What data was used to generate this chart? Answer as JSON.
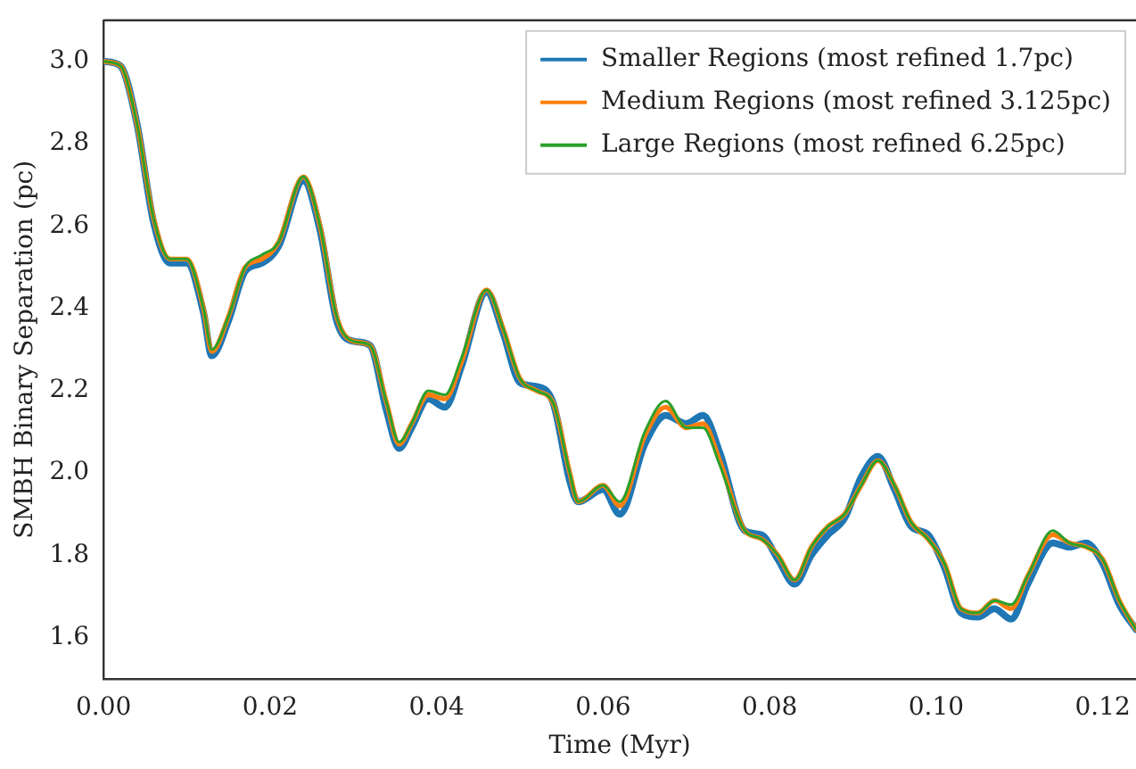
{
  "chart_data": {
    "type": "line",
    "xlabel": "Time (Myr)",
    "ylabel": "SMBH Binary Separation (pc)",
    "xlim": [
      0,
      0.124
    ],
    "ylim": [
      1.5,
      3.1
    ],
    "xticks": [
      {
        "value": 0,
        "label": "0.00"
      },
      {
        "value": 0.02,
        "label": "0.02"
      },
      {
        "value": 0.04,
        "label": "0.04"
      },
      {
        "value": 0.06,
        "label": "0.06"
      },
      {
        "value": 0.08,
        "label": "0.08"
      },
      {
        "value": 0.1,
        "label": "0.10"
      },
      {
        "value": 0.12,
        "label": "0.12"
      }
    ],
    "yticks": [
      1.6,
      1.8,
      {
        "value": 2,
        "label": "2.0"
      },
      2.2,
      2.4,
      2.6,
      2.8,
      {
        "value": 3,
        "label": "3.0"
      }
    ],
    "x": [
      0,
      0.002,
      0.004,
      0.006,
      0.008,
      0.01,
      0.012,
      0.013,
      0.015,
      0.017,
      0.019,
      0.021,
      0.024,
      0.026,
      0.028,
      0.03,
      0.032,
      0.034,
      0.0355,
      0.037,
      0.039,
      0.041,
      0.043,
      0.046,
      0.048,
      0.05,
      0.052,
      0.054,
      0.056,
      0.057,
      0.06,
      0.062,
      0.065,
      0.0675,
      0.07,
      0.072,
      0.074,
      0.077,
      0.079,
      0.081,
      0.083,
      0.085,
      0.087,
      0.089,
      0.091,
      0.093,
      0.095,
      0.097,
      0.099,
      0.101,
      0.103,
      0.105,
      0.107,
      0.109,
      0.111,
      0.114,
      0.116,
      0.118,
      0.12,
      0.122,
      0.124
    ],
    "series": [
      {
        "name": "Smaller Regions (most refined 1.7pc)",
        "color": "#1f77b4",
        "values": [
          3.0,
          2.99,
          2.85,
          2.61,
          2.51,
          2.51,
          2.39,
          2.285,
          2.37,
          2.49,
          2.51,
          2.55,
          2.71,
          2.59,
          2.37,
          2.32,
          2.31,
          2.15,
          2.06,
          2.11,
          2.18,
          2.16,
          2.26,
          2.44,
          2.34,
          2.22,
          2.21,
          2.17,
          1.98,
          1.93,
          1.96,
          1.9,
          2.07,
          2.14,
          2.12,
          2.14,
          2.05,
          1.86,
          1.85,
          1.79,
          1.73,
          1.8,
          1.85,
          1.89,
          1.99,
          2.04,
          1.96,
          1.87,
          1.85,
          1.77,
          1.66,
          1.65,
          1.67,
          1.645,
          1.73,
          1.83,
          1.82,
          1.83,
          1.78,
          1.68,
          1.62
        ]
      },
      {
        "name": "Medium Regions (most refined 3.125pc)",
        "color": "#ff7f0e",
        "values": [
          3.0,
          2.99,
          2.85,
          2.62,
          2.52,
          2.52,
          2.4,
          2.295,
          2.38,
          2.5,
          2.52,
          2.56,
          2.72,
          2.6,
          2.38,
          2.32,
          2.31,
          2.17,
          2.07,
          2.12,
          2.19,
          2.18,
          2.27,
          2.445,
          2.35,
          2.23,
          2.2,
          2.17,
          2.0,
          1.93,
          1.97,
          1.92,
          2.09,
          2.16,
          2.11,
          2.12,
          2.03,
          1.86,
          1.84,
          1.8,
          1.74,
          1.82,
          1.87,
          1.9,
          1.97,
          2.03,
          1.97,
          1.88,
          1.84,
          1.78,
          1.67,
          1.66,
          1.69,
          1.67,
          1.75,
          1.85,
          1.83,
          1.82,
          1.79,
          1.69,
          1.62
        ]
      },
      {
        "name": "Large Regions (most refined 6.25pc)",
        "color": "#2ca02c",
        "values": [
          3.0,
          2.99,
          2.85,
          2.62,
          2.52,
          2.52,
          2.4,
          2.3,
          2.38,
          2.5,
          2.53,
          2.56,
          2.72,
          2.6,
          2.38,
          2.32,
          2.31,
          2.17,
          2.075,
          2.12,
          2.2,
          2.19,
          2.28,
          2.445,
          2.35,
          2.23,
          2.2,
          2.17,
          2.0,
          1.93,
          1.97,
          1.93,
          2.1,
          2.175,
          2.11,
          2.11,
          2.02,
          1.86,
          1.84,
          1.8,
          1.74,
          1.82,
          1.87,
          1.9,
          1.97,
          2.03,
          1.97,
          1.88,
          1.84,
          1.78,
          1.67,
          1.66,
          1.69,
          1.68,
          1.75,
          1.86,
          1.83,
          1.82,
          1.79,
          1.69,
          1.62
        ]
      }
    ],
    "legend": "top right",
    "marker": "none",
    "line_style": "solid"
  }
}
